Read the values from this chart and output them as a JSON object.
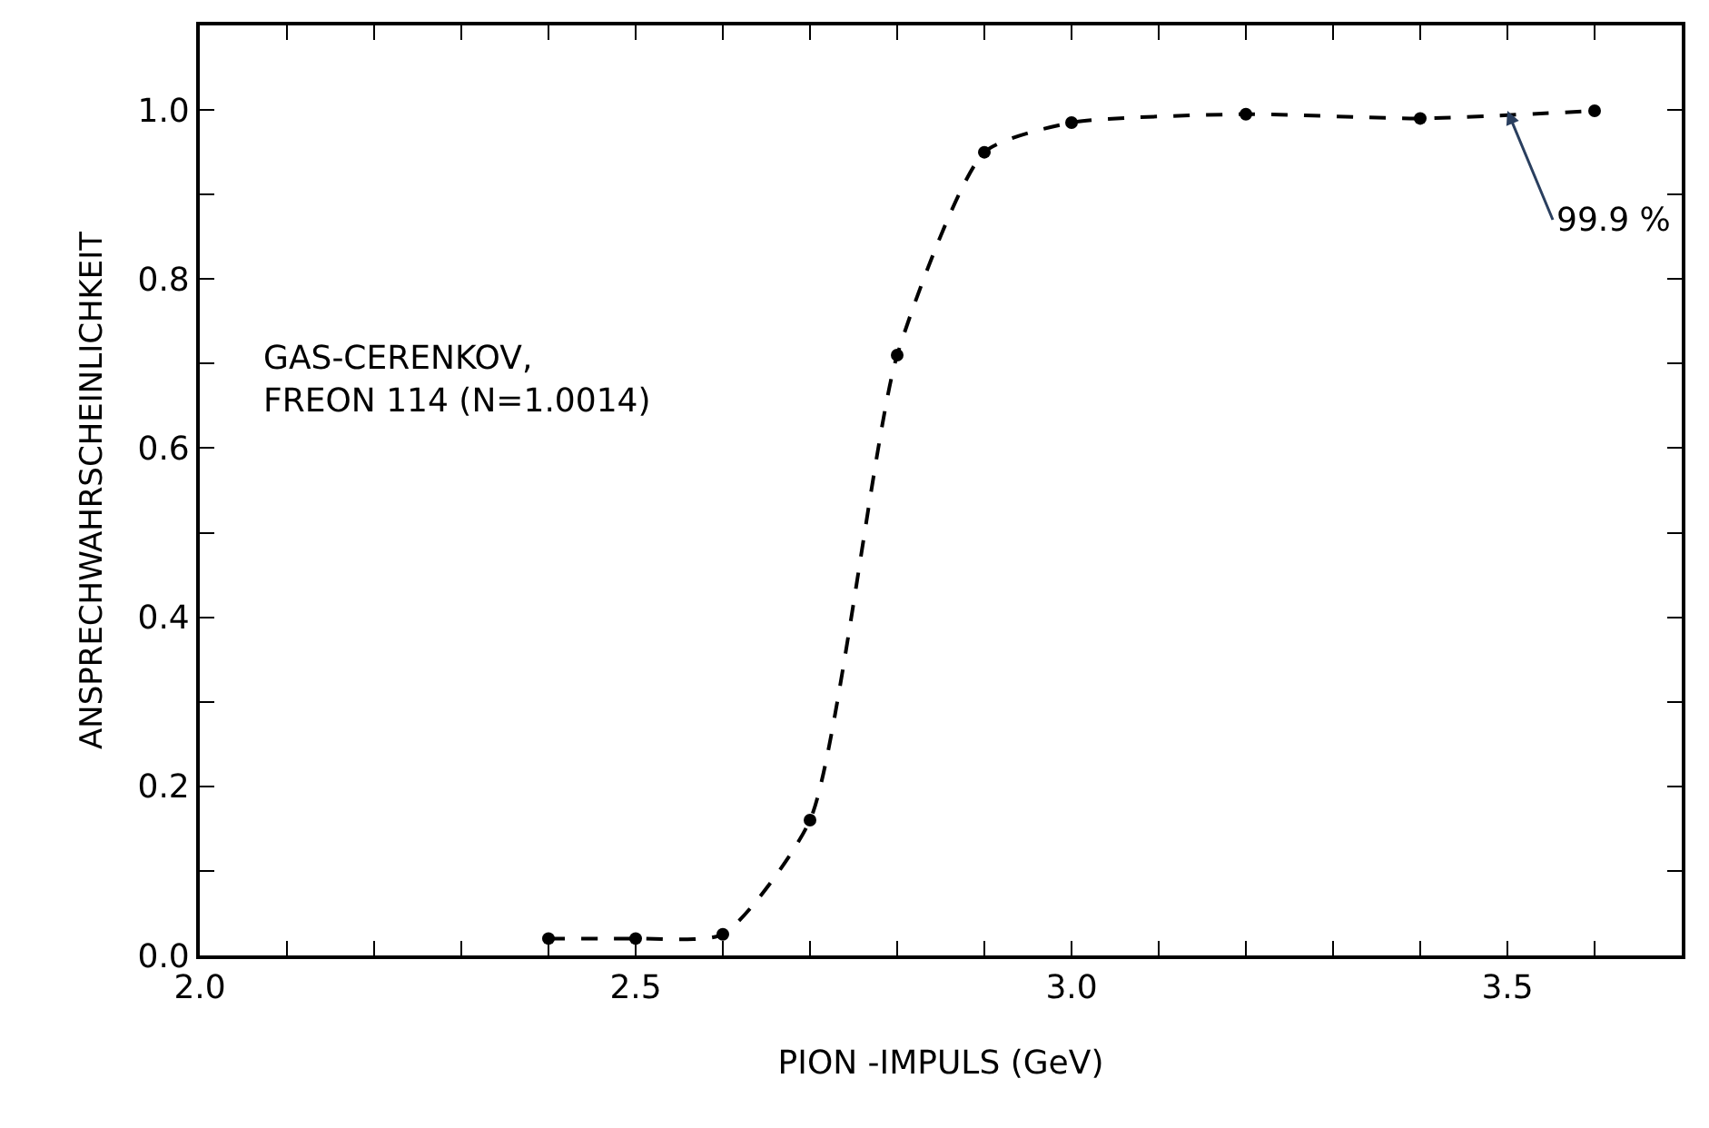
{
  "chart_data": {
    "type": "line",
    "xlabel": "PION -IMPULS (GeV)",
    "ylabel": "ANSPRECHWAHRSCHEINLICHKEIT",
    "x": [
      2.4,
      2.5,
      2.6,
      2.7,
      2.8,
      2.9,
      3.0,
      3.2,
      3.4,
      3.6
    ],
    "series": [
      {
        "color": "#000000",
        "values": [
          0.02,
          0.02,
          0.025,
          0.16,
          0.71,
          0.95,
          0.985,
          0.995,
          0.99,
          0.999
        ]
      }
    ],
    "xlim": [
      2.0,
      3.7
    ],
    "ylim": [
      0.0,
      1.1
    ],
    "xticks": [
      {
        "value": 2.0,
        "label": "2.0"
      },
      {
        "value": 2.1,
        "label": null
      },
      {
        "value": 2.2,
        "label": null
      },
      {
        "value": 2.3,
        "label": null
      },
      {
        "value": 2.4,
        "label": null
      },
      {
        "value": 2.5,
        "label": "2.5"
      },
      {
        "value": 2.6,
        "label": null
      },
      {
        "value": 2.7,
        "label": null
      },
      {
        "value": 2.8,
        "label": null
      },
      {
        "value": 2.9,
        "label": null
      },
      {
        "value": 3.0,
        "label": "3.0"
      },
      {
        "value": 3.1,
        "label": null
      },
      {
        "value": 3.2,
        "label": null
      },
      {
        "value": 3.3,
        "label": null
      },
      {
        "value": 3.4,
        "label": null
      },
      {
        "value": 3.5,
        "label": "3.5"
      },
      {
        "value": 3.6,
        "label": null
      }
    ],
    "yticks": [
      {
        "value": 0.0,
        "label": "0.0"
      },
      {
        "value": 0.1,
        "label": null
      },
      {
        "value": 0.2,
        "label": "0.2"
      },
      {
        "value": 0.3,
        "label": null
      },
      {
        "value": 0.4,
        "label": "0.4"
      },
      {
        "value": 0.5,
        "label": null
      },
      {
        "value": 0.6,
        "label": "0.6"
      },
      {
        "value": 0.7,
        "label": null
      },
      {
        "value": 0.8,
        "label": "0.8"
      },
      {
        "value": 0.9,
        "label": null
      },
      {
        "value": 1.0,
        "label": "1.0"
      }
    ],
    "marker": "circle",
    "line_style": "dashed",
    "annotations": [
      "GAS-CERENKOV,\nFREON 114 (N=1.0014)",
      {
        "text": "99.9 %",
        "x": 3.5,
        "y": 0.999
      }
    ]
  }
}
